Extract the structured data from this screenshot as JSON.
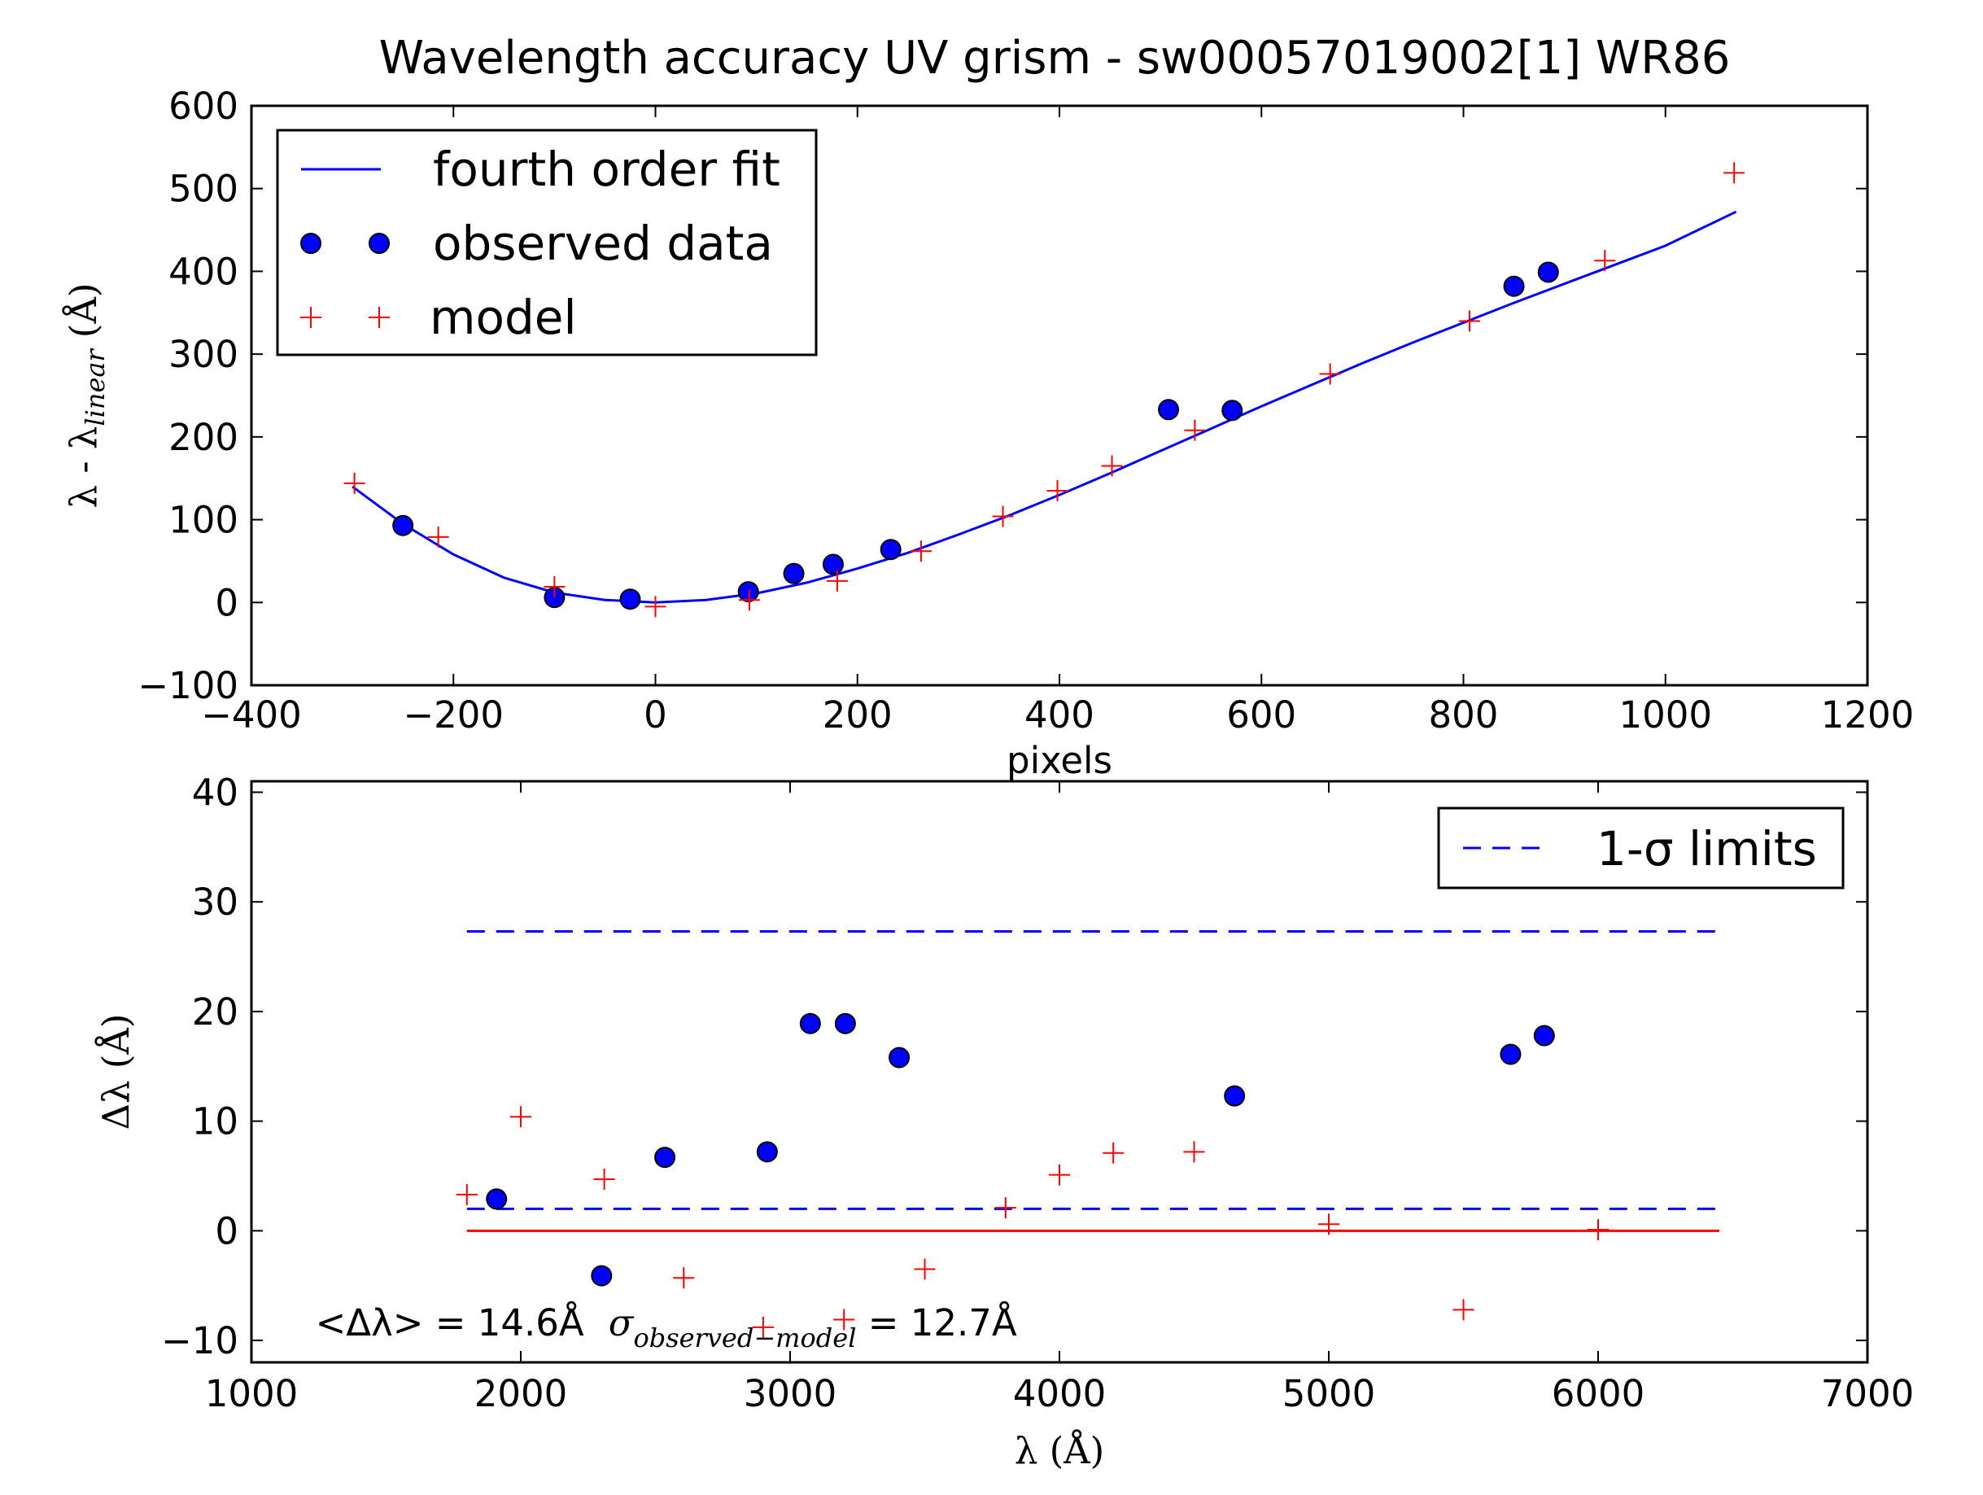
{
  "figure": {
    "title": "Wavelength accuracy UV grism - sw00057019002[1] WR86"
  },
  "colors": {
    "fit_line": "#0000ff",
    "observed_fill": "#0000ff",
    "model_marker": "#ff0000",
    "zero_line": "#ff0000",
    "sigma_line": "#0000ff"
  },
  "chart_data": [
    {
      "type": "scatter",
      "title": "Wavelength accuracy UV grism - sw00057019002[1] WR86",
      "xlabel": "pixels",
      "ylabel": "λ - λ_linear (Å)",
      "ylabel_main": "λ - λ",
      "ylabel_sub": "linear",
      "ylabel_unit": "(Å)",
      "xlim": [
        -400,
        1200
      ],
      "ylim": [
        -100,
        600
      ],
      "xticks": [
        "−400",
        "−200",
        "0",
        "200",
        "400",
        "600",
        "800",
        "1000",
        "1200"
      ],
      "xtick_values": [
        -400,
        -200,
        0,
        200,
        400,
        600,
        800,
        1000,
        1200
      ],
      "yticks": [
        "−100",
        "0",
        "100",
        "200",
        "300",
        "400",
        "500",
        "600"
      ],
      "ytick_values": [
        -100,
        0,
        100,
        200,
        300,
        400,
        500,
        600
      ],
      "legend_position": "top-left",
      "legend": [
        {
          "label": "fourth order fit",
          "marker": "line"
        },
        {
          "label": "observed data",
          "marker": "circle"
        },
        {
          "label": "model",
          "marker": "plus"
        }
      ],
      "series": [
        {
          "name": "fourth order fit",
          "kind": "line",
          "x": [
            -300,
            -250,
            -200,
            -150,
            -100,
            -50,
            0,
            50,
            100,
            150,
            200,
            250,
            300,
            350,
            400,
            450,
            500,
            550,
            600,
            650,
            700,
            750,
            800,
            850,
            900,
            950,
            1000,
            1070
          ],
          "y": [
            140,
            95,
            58,
            30,
            12,
            3,
            0,
            3,
            11,
            24,
            41,
            60,
            82,
            105,
            130,
            156,
            183,
            210,
            237,
            263,
            289,
            314,
            338,
            362,
            385,
            408,
            431,
            472
          ]
        },
        {
          "name": "observed data",
          "kind": "circle",
          "x": [
            -250,
            -100,
            -25,
            92,
            137,
            176,
            233,
            508,
            571,
            850,
            884
          ],
          "y": [
            93,
            6,
            4,
            13,
            35,
            46,
            64,
            233,
            232,
            382,
            399
          ]
        },
        {
          "name": "model",
          "kind": "plus",
          "x": [
            -298,
            -215,
            -100,
            0,
            93,
            180,
            263,
            344,
            398,
            452,
            534,
            668,
            806,
            940,
            1068
          ],
          "y": [
            144,
            79,
            19,
            -5,
            3,
            26,
            62,
            104,
            135,
            165,
            208,
            276,
            340,
            413,
            519
          ]
        }
      ]
    },
    {
      "type": "scatter",
      "xlabel": "λ (Å)",
      "ylabel": "Δλ (Å)",
      "xlim": [
        1000,
        7000
      ],
      "ylim": [
        -12,
        41
      ],
      "xticks": [
        "1000",
        "2000",
        "3000",
        "4000",
        "5000",
        "6000",
        "7000"
      ],
      "xtick_values": [
        1000,
        2000,
        3000,
        4000,
        5000,
        6000,
        7000
      ],
      "yticks": [
        "−10",
        "0",
        "10",
        "20",
        "30",
        "40"
      ],
      "ytick_values": [
        -10,
        0,
        10,
        20,
        30,
        40
      ],
      "legend_position": "top-right",
      "legend": [
        {
          "label": "1-σ limits",
          "marker": "dashed-line"
        }
      ],
      "annotation": {
        "mean_text": "<Δλ> = 14.6Å",
        "sigma_symbol": "σ",
        "sigma_sub": "observed−model",
        "sigma_text": " = 12.7Å",
        "position": [
          1600,
          -8.5
        ]
      },
      "series": [
        {
          "name": "1-σ limits",
          "kind": "dashed",
          "x": [
            1800,
            6450
          ],
          "upper": 27.3,
          "lower": 2.0
        },
        {
          "kind": "zero-line",
          "x": [
            1800,
            6450
          ],
          "y": [
            0,
            0
          ]
        },
        {
          "kind": "circle",
          "x": [
            1910,
            2300,
            2535,
            2915,
            3075,
            3205,
            3405,
            4650,
            5675,
            5800
          ],
          "y": [
            2.9,
            -4.1,
            6.7,
            7.2,
            18.9,
            18.9,
            15.8,
            12.3,
            16.1,
            17.8
          ]
        },
        {
          "kind": "plus",
          "x": [
            1800,
            2000,
            2310,
            2605,
            2900,
            3200,
            3500,
            3800,
            4000,
            4200,
            4500,
            5000,
            5500,
            6000
          ],
          "y": [
            3.3,
            10.4,
            4.7,
            -4.3,
            -8.8,
            -8.1,
            -3.5,
            2.1,
            5.1,
            7.1,
            7.2,
            0.6,
            -7.2,
            0.1
          ]
        }
      ]
    }
  ]
}
